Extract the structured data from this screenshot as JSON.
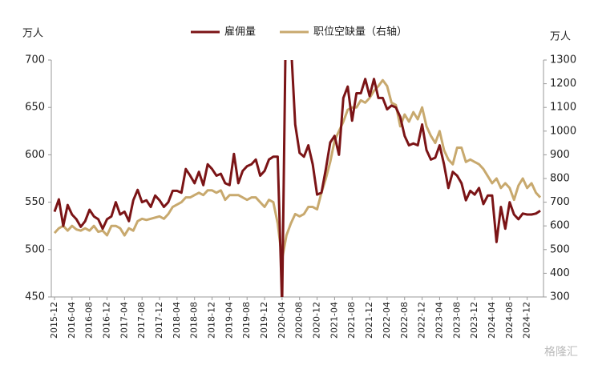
{
  "chart_data": {
    "type": "line",
    "y_unit": "万人",
    "y2_unit": "万人",
    "watermark": "格隆汇",
    "categories": [
      "2015-12",
      null,
      null,
      null,
      "2016-04",
      null,
      null,
      null,
      "2016-08",
      null,
      null,
      null,
      "2016-12",
      null,
      null,
      null,
      "2017-04",
      null,
      null,
      null,
      "2017-08",
      null,
      null,
      null,
      "2017-12",
      null,
      null,
      null,
      "2018-04",
      null,
      null,
      null,
      "2018-08",
      null,
      null,
      null,
      "2018-12",
      null,
      null,
      null,
      "2019-04",
      null,
      null,
      null,
      "2019-08",
      null,
      null,
      null,
      "2019-12",
      null,
      null,
      null,
      "2020-04",
      null,
      null,
      null,
      "2020-08",
      null,
      null,
      null,
      "2020-12",
      null,
      null,
      null,
      "2021-04",
      null,
      null,
      null,
      "2021-08",
      null,
      null,
      null,
      "2021-12",
      null,
      null,
      null,
      "2022-04",
      null,
      null,
      null,
      "2022-08",
      null,
      null,
      null,
      "2022-12",
      null,
      null,
      null,
      "2023-04",
      null,
      null,
      null,
      "2023-08",
      null,
      null,
      null,
      "2023-12",
      null,
      null,
      null,
      "2024-04",
      null,
      null,
      null,
      "2024-08",
      null,
      null,
      null,
      "2024-12",
      null,
      null,
      null
    ],
    "series": [
      {
        "name": "雇佣量",
        "color": "#7b1416",
        "axis": "y",
        "values": [
          540,
          553,
          525,
          547,
          537,
          532,
          524,
          530,
          542,
          535,
          532,
          522,
          532,
          535,
          550,
          537,
          540,
          530,
          552,
          563,
          550,
          552,
          545,
          557,
          552,
          545,
          550,
          562,
          562,
          560,
          585,
          578,
          570,
          582,
          568,
          590,
          585,
          578,
          580,
          570,
          568,
          601,
          570,
          583,
          588,
          590,
          595,
          578,
          583,
          595,
          598,
          598,
          440,
          790,
          720,
          632,
          602,
          598,
          610,
          590,
          558,
          560,
          585,
          613,
          620,
          600,
          660,
          672,
          636,
          665,
          665,
          680,
          662,
          680,
          660,
          660,
          648,
          652,
          650,
          640,
          620,
          610,
          612,
          610,
          632,
          605,
          595,
          597,
          610,
          590,
          565,
          582,
          578,
          570,
          552,
          562,
          558,
          565,
          548,
          557,
          557,
          508,
          545,
          522,
          550,
          537,
          532,
          538,
          537,
          537,
          538,
          541
        ]
      },
      {
        "name": "职位空缺量（右轴）",
        "color": "#c8a96e",
        "axis": "y2",
        "values": [
          570,
          590,
          600,
          580,
          600,
          585,
          580,
          590,
          580,
          600,
          575,
          580,
          560,
          600,
          600,
          590,
          560,
          590,
          580,
          620,
          630,
          625,
          630,
          635,
          640,
          630,
          650,
          680,
          690,
          700,
          720,
          720,
          730,
          740,
          730,
          750,
          750,
          740,
          750,
          710,
          730,
          730,
          730,
          720,
          710,
          720,
          720,
          700,
          680,
          710,
          700,
          610,
          460,
          560,
          610,
          650,
          640,
          650,
          680,
          680,
          670,
          740,
          800,
          870,
          960,
          1000,
          1040,
          1090,
          1100,
          1100,
          1130,
          1120,
          1140,
          1170,
          1190,
          1215,
          1190,
          1120,
          1110,
          1020,
          1070,
          1040,
          1080,
          1050,
          1100,
          1020,
          980,
          950,
          1000,
          920,
          880,
          860,
          930,
          930,
          870,
          880,
          870,
          860,
          840,
          810,
          780,
          800,
          760,
          780,
          760,
          710,
          770,
          800,
          760,
          780,
          740,
          720
        ]
      }
    ],
    "ylim": [
      450,
      700
    ],
    "yticks": [
      450,
      500,
      550,
      600,
      650,
      700
    ],
    "y2lim": [
      300,
      1300
    ],
    "y2ticks": [
      300,
      400,
      500,
      600,
      700,
      800,
      900,
      1000,
      1100,
      1200,
      1300
    ],
    "legend": "top",
    "grid": false
  }
}
